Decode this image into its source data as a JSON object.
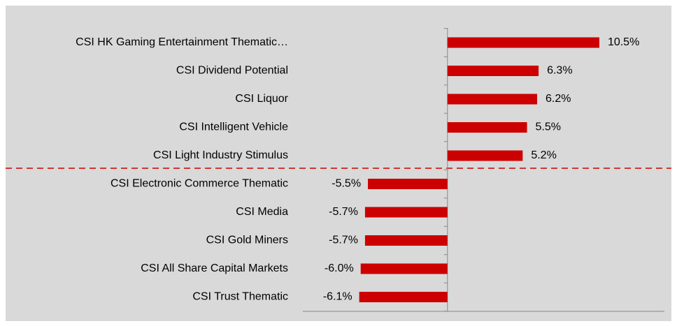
{
  "chart_data": {
    "type": "bar",
    "orientation": "horizontal",
    "categories": [
      "CSI HK Gaming Entertainment Thematic…",
      "CSI Dividend Potential",
      "CSI Liquor",
      "CSI Intelligent Vehicle",
      "CSI Light Industry Stimulus",
      "CSI Electronic Commerce Thematic",
      "CSI Media",
      "CSI Gold Miners",
      "CSI All Share Capital Markets",
      "CSI Trust Thematic"
    ],
    "values": [
      10.5,
      6.3,
      6.2,
      5.5,
      5.2,
      -5.5,
      -5.7,
      -5.7,
      -6.0,
      -6.1
    ],
    "value_labels": [
      "10.5%",
      "6.3%",
      "6.2%",
      "5.5%",
      "5.2%",
      "-5.5%",
      "-5.7%",
      "-5.7%",
      "-6.0%",
      "-6.1%"
    ],
    "color": "#cc0000",
    "xlim": [
      -10,
      15
    ]
  }
}
